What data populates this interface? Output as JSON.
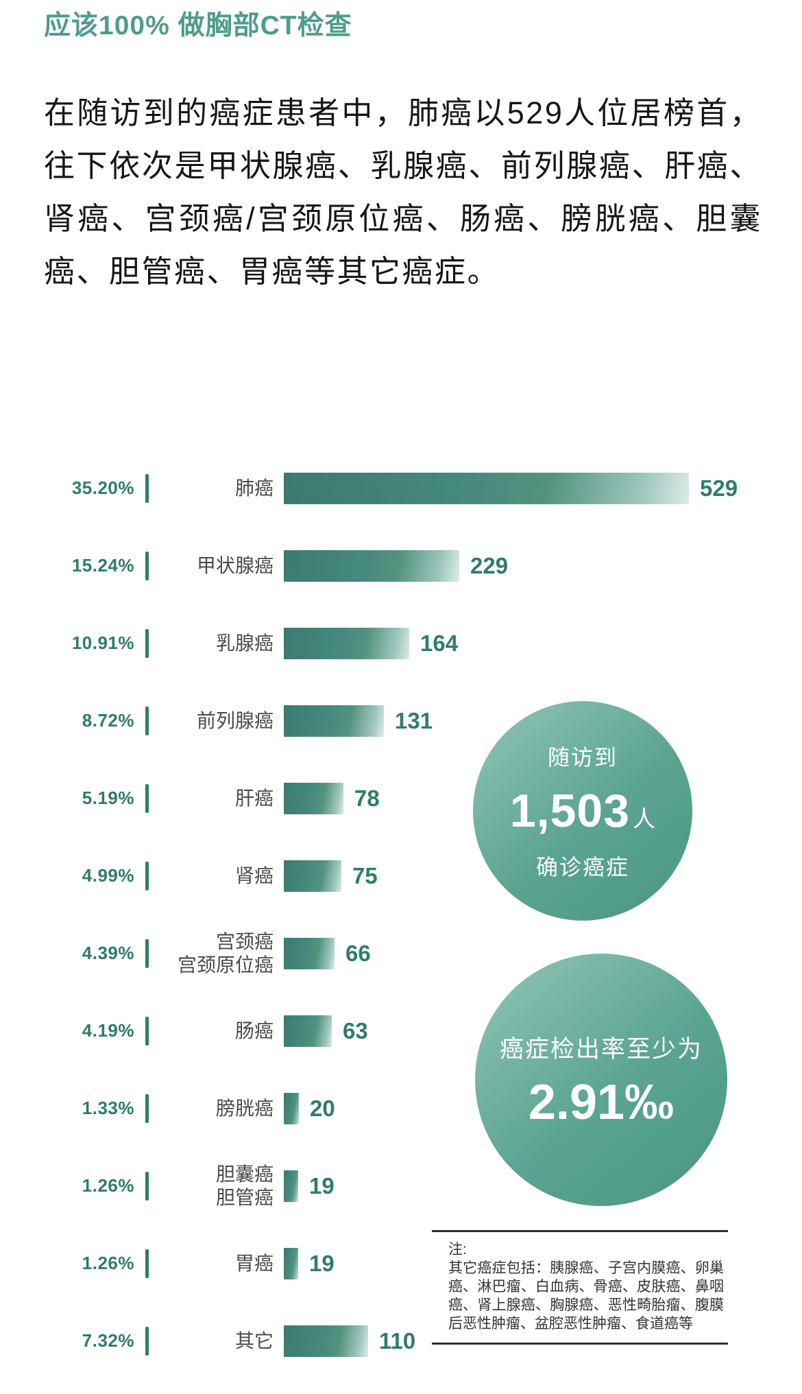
{
  "title": "应该100%  做胸部CT检查",
  "paragraph": "在随访到的癌症患者中，肺癌以529人位居榜首，往下依次是甲状腺癌、乳腺癌、前列腺癌、肝癌、肾癌、宫颈癌/宫颈原位癌、肠癌、膀胱癌、胆囊癌、胆管癌、胃癌等其它癌症。",
  "colors": {
    "title_teal": "#4F9C8C",
    "deep_teal": "#2E7C6D",
    "bar_dark": "#3A7C6F",
    "bar_light": "#DCEBE7",
    "circle_light": "#92C5B7",
    "circle_dark": "#4A9683",
    "label_gray": "#4A4A4A"
  },
  "chart_data": {
    "type": "bar",
    "orientation": "horizontal",
    "title": "",
    "xlabel": "",
    "ylabel": "",
    "grid": false,
    "legend_position": "none",
    "unit": "人",
    "max_value": 529,
    "categories": [
      "肺癌",
      "甲状腺癌",
      "乳腺癌",
      "前列腺癌",
      "肝癌",
      "肾癌",
      "宫颈癌 宫颈原位癌",
      "肠癌",
      "膀胱癌",
      "胆囊癌 胆管癌",
      "胃癌",
      "其它"
    ],
    "values": [
      529,
      229,
      164,
      131,
      78,
      75,
      66,
      63,
      20,
      19,
      19,
      110
    ],
    "percents": [
      "35.20%",
      "15.24%",
      "10.91%",
      "8.72%",
      "5.19%",
      "4.99%",
      "4.39%",
      "4.19%",
      "1.33%",
      "1.26%",
      "1.26%",
      "7.32%"
    ],
    "rows": [
      {
        "percent": "35.20%",
        "label_lines": [
          "肺癌"
        ],
        "value": 529
      },
      {
        "percent": "15.24%",
        "label_lines": [
          "甲状腺癌"
        ],
        "value": 229
      },
      {
        "percent": "10.91%",
        "label_lines": [
          "乳腺癌"
        ],
        "value": 164
      },
      {
        "percent": "8.72%",
        "label_lines": [
          "前列腺癌"
        ],
        "value": 131
      },
      {
        "percent": "5.19%",
        "label_lines": [
          "肝癌"
        ],
        "value": 78
      },
      {
        "percent": "4.99%",
        "label_lines": [
          "肾癌"
        ],
        "value": 75
      },
      {
        "percent": "4.39%",
        "label_lines": [
          "宫颈癌",
          "宫颈原位癌"
        ],
        "value": 66
      },
      {
        "percent": "4.19%",
        "label_lines": [
          "肠癌"
        ],
        "value": 63
      },
      {
        "percent": "1.33%",
        "label_lines": [
          "膀胱癌"
        ],
        "value": 20
      },
      {
        "percent": "1.26%",
        "label_lines": [
          "胆囊癌",
          "胆管癌"
        ],
        "value": 19
      },
      {
        "percent": "1.26%",
        "label_lines": [
          "胃癌"
        ],
        "value": 19
      },
      {
        "percent": "7.32%",
        "label_lines": [
          "其它"
        ],
        "value": 110
      }
    ]
  },
  "stats": {
    "followed": {
      "line1": "随访到",
      "number": "1,503",
      "suffix": "人",
      "line3": "确诊癌症"
    },
    "detection": {
      "line1": "癌症检出率至少为",
      "number": "2.91‰"
    }
  },
  "note": {
    "heading": "注:",
    "body": "其它癌症包括：胰腺癌、子宫内膜癌、卵巢癌、淋巴瘤、白血病、骨癌、皮肤癌、鼻咽癌、肾上腺癌、胸腺癌、恶性畸胎瘤、腹膜后恶性肿瘤、盆腔恶性肿瘤、食道癌等"
  }
}
